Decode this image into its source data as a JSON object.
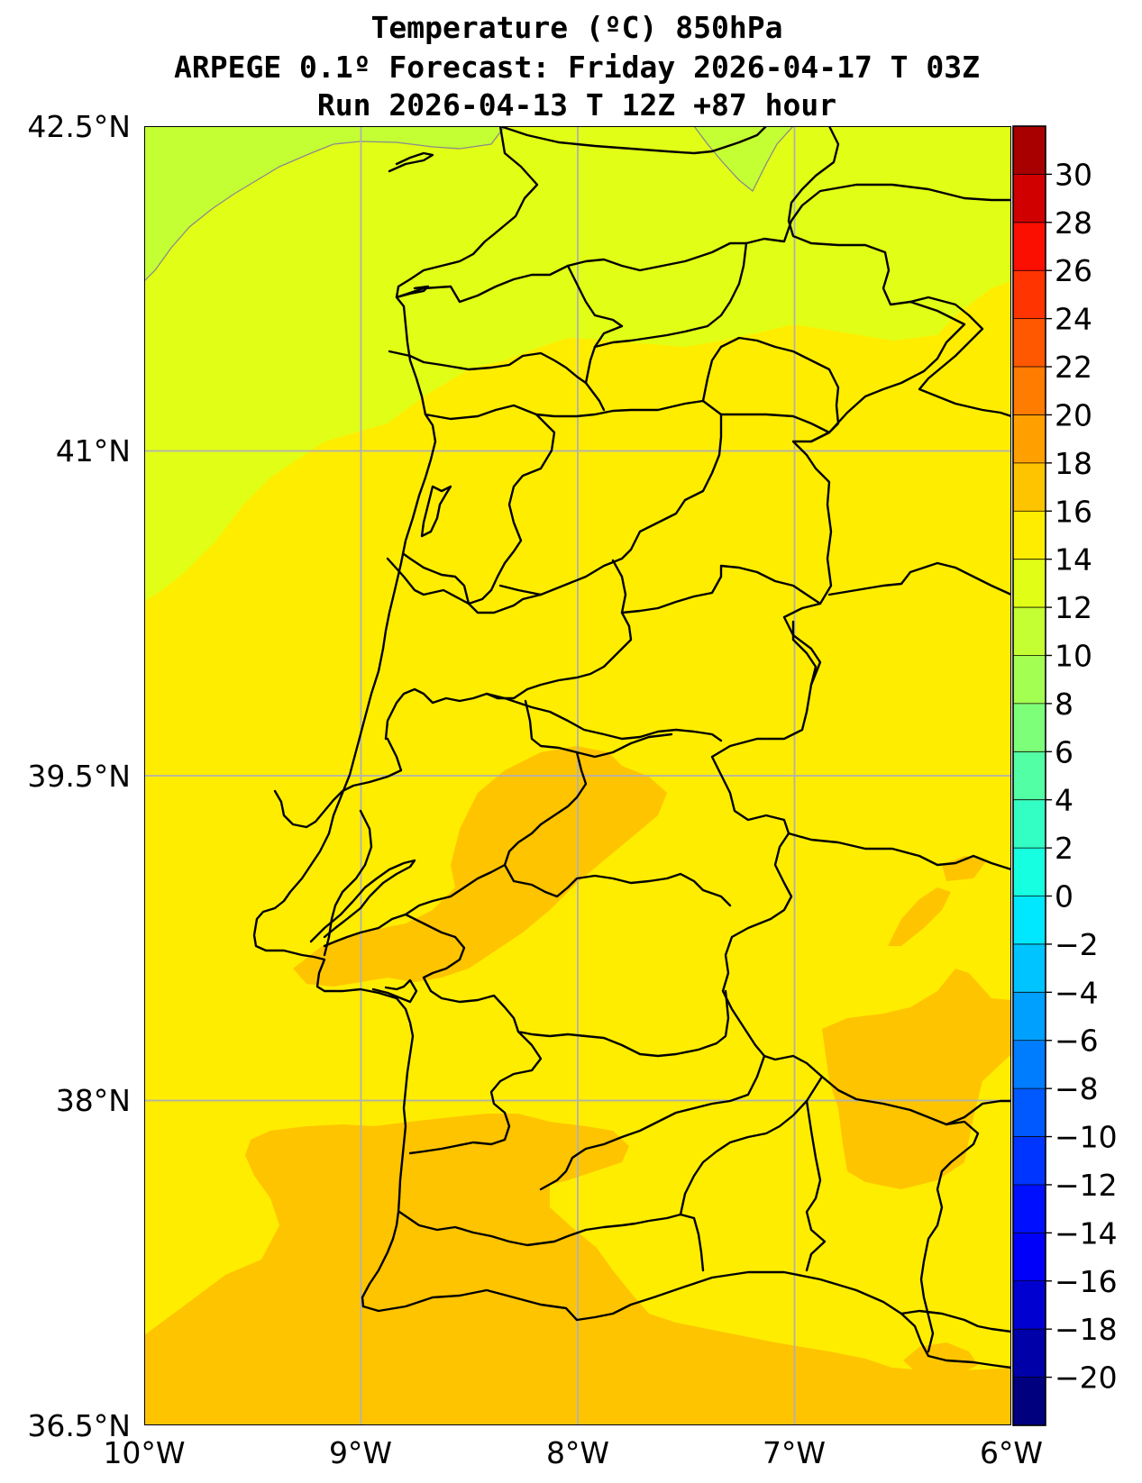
{
  "title": {
    "line1": "Temperature (ºC) 850hPa",
    "line2": "ARPEGE 0.1º Forecast: Friday 2026-04-17 T 03Z",
    "line3": "Run 2026-04-13 T 12Z +87 hour"
  },
  "axes": {
    "lat_labels": [
      "42.5°N",
      "41°N",
      "39.5°N",
      "38°N",
      "36.5°N"
    ],
    "lon_labels": [
      "10°W",
      "9°W",
      "8°W",
      "7°W",
      "6°W"
    ],
    "lon_range": [
      -10,
      -6
    ],
    "lat_range": [
      36.5,
      42.5
    ],
    "grid": true
  },
  "colorbar": {
    "levels": [
      -22,
      -20,
      -18,
      -16,
      -14,
      -12,
      -10,
      -8,
      -6,
      -4,
      -2,
      0,
      2,
      4,
      6,
      8,
      10,
      12,
      14,
      16,
      18,
      20,
      22,
      24,
      26,
      28,
      30,
      32
    ],
    "colors": [
      "#00007f",
      "#0000a8",
      "#0000d1",
      "#0000fa",
      "#0010ff",
      "#0034ff",
      "#0058ff",
      "#007cff",
      "#00a0ff",
      "#00c4ff",
      "#00e8ff",
      "#16ffe1",
      "#33ffc4",
      "#53ffa4",
      "#7dff7a",
      "#a4ff53",
      "#c4ff33",
      "#e1ff16",
      "#ffed00",
      "#ffc400",
      "#ffa000",
      "#ff7c00",
      "#ff5800",
      "#ff3400",
      "#fa0f00",
      "#d10000",
      "#a80000",
      "#7f0000"
    ],
    "tick_labels": [
      "−20",
      "−18",
      "−16",
      "−14",
      "−12",
      "−10",
      "−8",
      "−6",
      "−4",
      "−2",
      "0",
      "2",
      "4",
      "6",
      "8",
      "10",
      "12",
      "14",
      "16",
      "18",
      "20",
      "22",
      "24",
      "26",
      "28",
      "30"
    ],
    "unit": "ºC"
  },
  "field": {
    "dominant_band": "12–14 ºC",
    "northwest_band": "10–12 ºC",
    "northwest_corner_band": "8–10 ºC",
    "south_band": "14–16 ºC",
    "colors": {
      "band_8_10": "#c4ff33",
      "band_10_12": "#e1ff16",
      "band_12_14": "#ffed00",
      "band_14_16": "#ffc400"
    }
  }
}
